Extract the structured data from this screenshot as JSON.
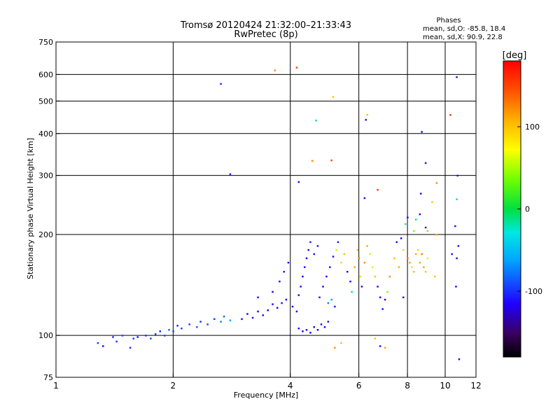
{
  "chart_data": {
    "type": "scatter",
    "title": "Tromsø 20120424 21:32:00–21:33:43",
    "subtitle": "RwPretec (8p)",
    "xlabel": "Frequency [MHz]",
    "ylabel": "Stationary phase Virtual Height [km]",
    "x_scale": "log",
    "y_scale": "log",
    "xlim": [
      1,
      12
    ],
    "ylim": [
      75,
      750
    ],
    "x_ticks": [
      1,
      2,
      4,
      6,
      8,
      10,
      12
    ],
    "y_ticks": [
      75,
      100,
      200,
      300,
      400,
      500,
      600,
      750
    ],
    "grid": true,
    "legend_position": "top-right",
    "phase_stats": {
      "title": "Phases",
      "line_o": "mean, sd,O: -85.8, 18.4",
      "line_x": "mean, sd,X:  90.9, 22.8"
    },
    "colorbar": {
      "label": "[deg]",
      "range": [
        -180,
        180
      ],
      "ticks": [
        100,
        0,
        -100
      ]
    },
    "series": [
      {
        "points": [
          [
            1.28,
            95,
            -95
          ],
          [
            1.32,
            93,
            -110
          ],
          [
            1.4,
            99,
            -100
          ],
          [
            1.43,
            96,
            -95
          ],
          [
            1.48,
            100,
            -90
          ],
          [
            1.55,
            92,
            -100
          ],
          [
            1.58,
            98,
            -95
          ],
          [
            1.62,
            99,
            -105
          ],
          [
            1.7,
            100,
            -100
          ],
          [
            1.75,
            98,
            -90
          ],
          [
            1.8,
            101,
            -95
          ],
          [
            1.85,
            103,
            -100
          ],
          [
            1.9,
            100,
            -95
          ],
          [
            1.95,
            104,
            -80
          ],
          [
            2.0,
            103,
            -95
          ],
          [
            2.05,
            107,
            -100
          ],
          [
            2.1,
            105,
            -90
          ],
          [
            2.2,
            108,
            -95
          ],
          [
            2.3,
            106,
            -85
          ],
          [
            2.35,
            110,
            -100
          ],
          [
            2.45,
            108,
            -90
          ],
          [
            2.55,
            112,
            -95
          ],
          [
            2.65,
            110,
            -70
          ],
          [
            2.7,
            114,
            -80
          ],
          [
            2.8,
            111,
            -60
          ],
          [
            2.65,
            563,
            -100
          ],
          [
            2.8,
            303,
            -100
          ],
          [
            3.0,
            112,
            -110
          ],
          [
            3.1,
            116,
            -115
          ],
          [
            3.2,
            113,
            -110
          ],
          [
            3.3,
            118,
            -115
          ],
          [
            3.4,
            115,
            -110
          ],
          [
            3.5,
            119,
            -115
          ],
          [
            3.6,
            124,
            -110
          ],
          [
            3.7,
            121,
            -115
          ],
          [
            3.8,
            125,
            -110
          ],
          [
            3.9,
            128,
            -115
          ],
          [
            3.3,
            130,
            -110
          ],
          [
            3.6,
            135,
            -115
          ],
          [
            3.75,
            145,
            -110
          ],
          [
            3.85,
            155,
            -105
          ],
          [
            3.95,
            165,
            -110
          ],
          [
            3.65,
            618,
            120
          ],
          [
            4.05,
            122,
            -110
          ],
          [
            4.15,
            118,
            -115
          ],
          [
            4.2,
            132,
            -110
          ],
          [
            4.25,
            140,
            -110
          ],
          [
            4.3,
            150,
            -115
          ],
          [
            4.35,
            160,
            -110
          ],
          [
            4.4,
            170,
            -115
          ],
          [
            4.45,
            180,
            -110
          ],
          [
            4.5,
            190,
            -105
          ],
          [
            4.6,
            175,
            -110
          ],
          [
            4.7,
            185,
            -110
          ],
          [
            4.2,
            105,
            -110
          ],
          [
            4.3,
            103,
            -115
          ],
          [
            4.4,
            104,
            -110
          ],
          [
            4.5,
            102,
            -115
          ],
          [
            4.6,
            106,
            -110
          ],
          [
            4.7,
            104,
            -115
          ],
          [
            4.8,
            108,
            -110
          ],
          [
            4.9,
            106,
            -115
          ],
          [
            5.0,
            110,
            -110
          ],
          [
            4.15,
            630,
            150
          ],
          [
            4.65,
            438,
            -20
          ],
          [
            4.55,
            332,
            120
          ],
          [
            5.15,
            515,
            100
          ],
          [
            4.2,
            287,
            -110
          ],
          [
            4.75,
            130,
            -110
          ],
          [
            4.85,
            140,
            -110
          ],
          [
            4.95,
            150,
            -115
          ],
          [
            5.05,
            160,
            -110
          ],
          [
            5.15,
            172,
            -110
          ],
          [
            5.0,
            125,
            -70
          ],
          [
            5.1,
            128,
            -60
          ],
          [
            5.2,
            122,
            -110
          ],
          [
            5.25,
            180,
            60
          ],
          [
            5.3,
            190,
            -110
          ],
          [
            5.4,
            165,
            90
          ],
          [
            5.5,
            175,
            100
          ],
          [
            5.6,
            155,
            -110
          ],
          [
            5.7,
            145,
            -110
          ],
          [
            5.75,
            135,
            -20
          ],
          [
            5.1,
            333,
            150
          ],
          [
            5.4,
            95,
            100
          ],
          [
            5.2,
            92,
            120
          ],
          [
            5.85,
            160,
            110
          ],
          [
            5.95,
            180,
            100
          ],
          [
            6.0,
            170,
            130
          ],
          [
            6.05,
            150,
            90
          ],
          [
            6.1,
            140,
            -110
          ],
          [
            6.2,
            165,
            120
          ],
          [
            6.3,
            185,
            110
          ],
          [
            6.4,
            175,
            60
          ],
          [
            6.5,
            160,
            80
          ],
          [
            6.6,
            150,
            100
          ],
          [
            6.7,
            140,
            -110
          ],
          [
            6.8,
            130,
            -115
          ],
          [
            6.9,
            120,
            -110
          ],
          [
            7.0,
            128,
            -115
          ],
          [
            7.1,
            135,
            40
          ],
          [
            6.3,
            455,
            100
          ],
          [
            6.25,
            440,
            -110
          ],
          [
            6.7,
            272,
            150
          ],
          [
            6.2,
            257,
            -110
          ],
          [
            6.8,
            93,
            -110
          ],
          [
            6.6,
            98,
            100
          ],
          [
            7.0,
            92,
            110
          ],
          [
            7.2,
            150,
            120
          ],
          [
            7.4,
            170,
            100
          ],
          [
            7.6,
            160,
            110
          ],
          [
            7.8,
            180,
            90
          ],
          [
            8.0,
            170,
            130
          ],
          [
            8.1,
            165,
            110
          ],
          [
            8.2,
            160,
            60
          ],
          [
            8.3,
            155,
            100
          ],
          [
            8.4,
            175,
            110
          ],
          [
            8.5,
            180,
            90
          ],
          [
            8.6,
            165,
            110
          ],
          [
            8.7,
            175,
            130
          ],
          [
            8.8,
            160,
            110
          ],
          [
            8.9,
            155,
            100
          ],
          [
            9.0,
            170,
            60
          ],
          [
            7.5,
            190,
            -110
          ],
          [
            7.7,
            195,
            -115
          ],
          [
            7.9,
            215,
            -30
          ],
          [
            8.0,
            225,
            -110
          ],
          [
            8.3,
            205,
            40
          ],
          [
            8.4,
            222,
            -20
          ],
          [
            8.6,
            230,
            -110
          ],
          [
            8.9,
            210,
            -110
          ],
          [
            9.0,
            205,
            110
          ],
          [
            7.8,
            130,
            -110
          ],
          [
            8.7,
            405,
            -110
          ],
          [
            8.9,
            327,
            -110
          ],
          [
            8.65,
            265,
            -110
          ],
          [
            9.25,
            250,
            100
          ],
          [
            9.5,
            200,
            110
          ],
          [
            9.5,
            285,
            120
          ],
          [
            9.4,
            150,
            100
          ],
          [
            10.3,
            455,
            150
          ],
          [
            10.7,
            590,
            -110
          ],
          [
            10.7,
            170,
            -110
          ],
          [
            10.4,
            175,
            -110
          ],
          [
            10.6,
            212,
            -110
          ],
          [
            10.7,
            255,
            -20
          ],
          [
            10.75,
            300,
            -110
          ],
          [
            10.8,
            185,
            -110
          ],
          [
            10.65,
            140,
            -110
          ],
          [
            10.85,
            85,
            -110
          ]
        ]
      }
    ]
  }
}
